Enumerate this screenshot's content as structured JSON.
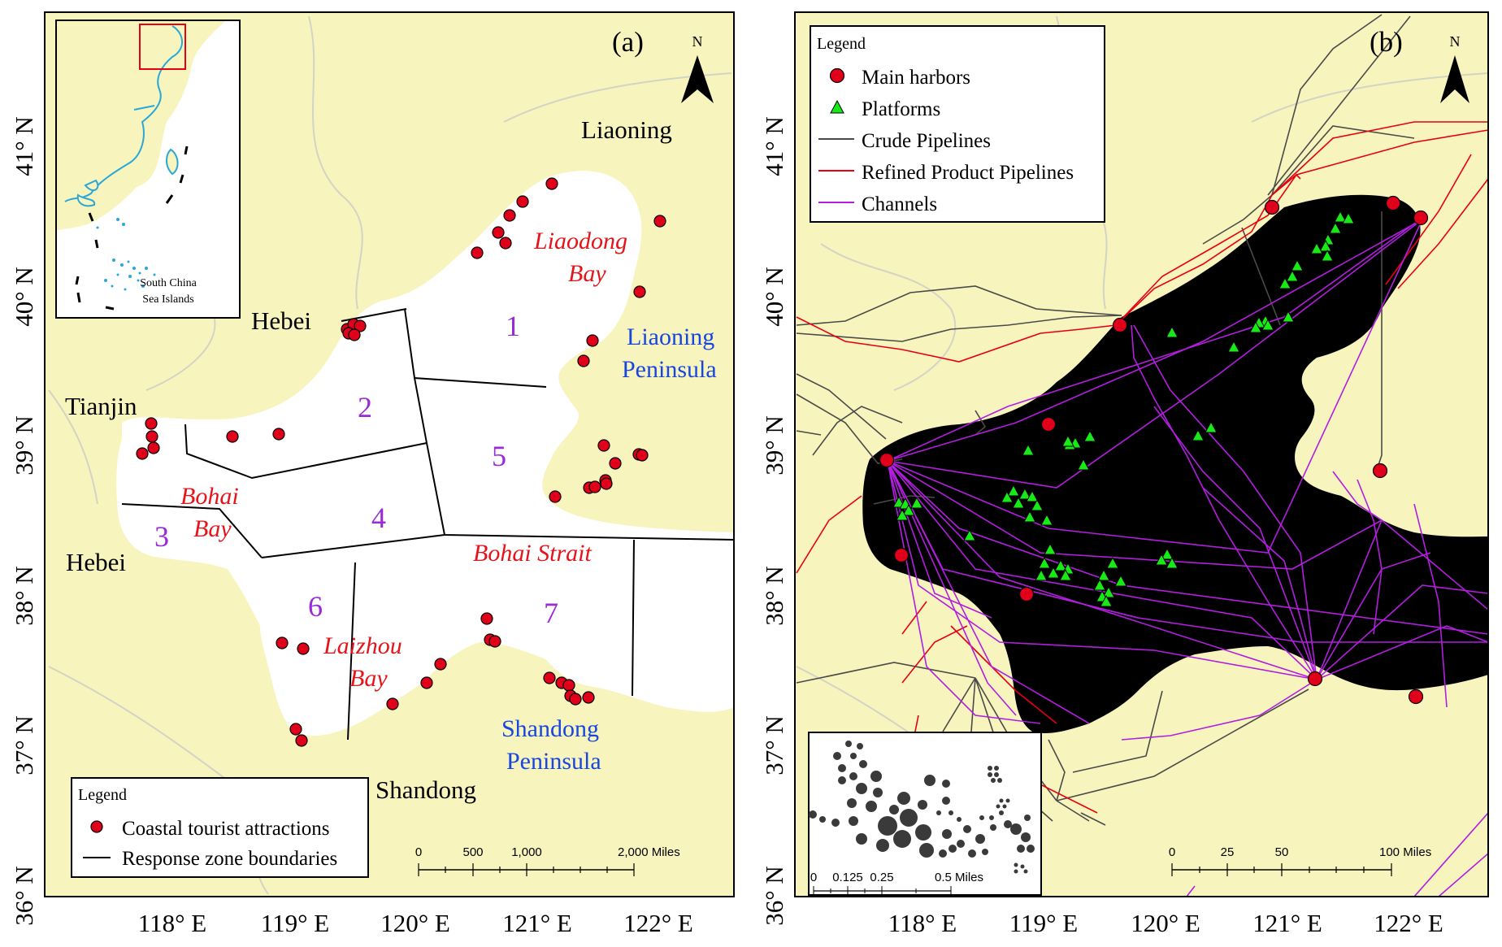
{
  "colors": {
    "land": "#f7f4bd",
    "sea": "#ffffff",
    "province_border": "#d3d3c6",
    "harbor": "#e0001a",
    "platform": "#17ea17",
    "crude": "#4a4a4a",
    "refined": "#e60012",
    "channel": "#b31ee0",
    "zone_line": "#000000",
    "inset_coast": "#2aa7d8"
  },
  "panel_a": {
    "letter": "(a)",
    "north_label": "N",
    "lat_labels": [
      "41° N",
      "40° N",
      "39° N",
      "38° N",
      "37° N",
      "36° N"
    ],
    "lon_labels": [
      "118° E",
      "119° E",
      "120° E",
      "121° E",
      "122° E"
    ],
    "places": {
      "liaoning": "Liaoning",
      "hebei_north": "Hebei",
      "tianjin": "Tianjin",
      "hebei_south": "Hebei",
      "shandong": "Shandong",
      "liaodong_bay_1": "Liaodong",
      "liaodong_bay_2": "Bay",
      "bohai_bay_1": "Bohai",
      "bohai_bay_2": "Bay",
      "laizhou_bay_1": "Laizhou",
      "laizhou_bay_2": "Bay",
      "bohai_strait": "Bohai Strait",
      "liaoning_pen_1": "Liaoning",
      "liaoning_pen_2": "Peninsula",
      "shandong_pen_1": "Shandong",
      "shandong_pen_2": "Peninsula"
    },
    "zones": [
      "1",
      "2",
      "3",
      "4",
      "5",
      "6",
      "7"
    ],
    "inset_label_1": "South China",
    "inset_label_2": "Sea Islands",
    "legend": {
      "title": "Legend",
      "attractions": "Coastal tourist attractions",
      "boundaries": "Response zone boundaries"
    },
    "scale": {
      "ticks": [
        "0",
        "500",
        "1,000",
        "2,000 Miles"
      ]
    }
  },
  "panel_b": {
    "letter": "(b)",
    "north_label": "N",
    "lat_labels": [
      "41° N",
      "40° N",
      "39° N",
      "38° N",
      "37° N",
      "36° N"
    ],
    "lon_labels": [
      "118° E",
      "119° E",
      "120° E",
      "121° E",
      "122° E"
    ],
    "legend": {
      "title": "Legend",
      "harbors": "Main harbors",
      "platforms": "Platforms",
      "crude": "Crude Pipelines",
      "refined": "Refined Product Pipelines",
      "channels": "Channels"
    },
    "scale": {
      "ticks": [
        "0",
        "25",
        "50",
        "100 Miles"
      ]
    },
    "inset_scale": {
      "ticks": [
        "0",
        "0.125",
        "0.25",
        "0.5 Miles"
      ]
    }
  }
}
